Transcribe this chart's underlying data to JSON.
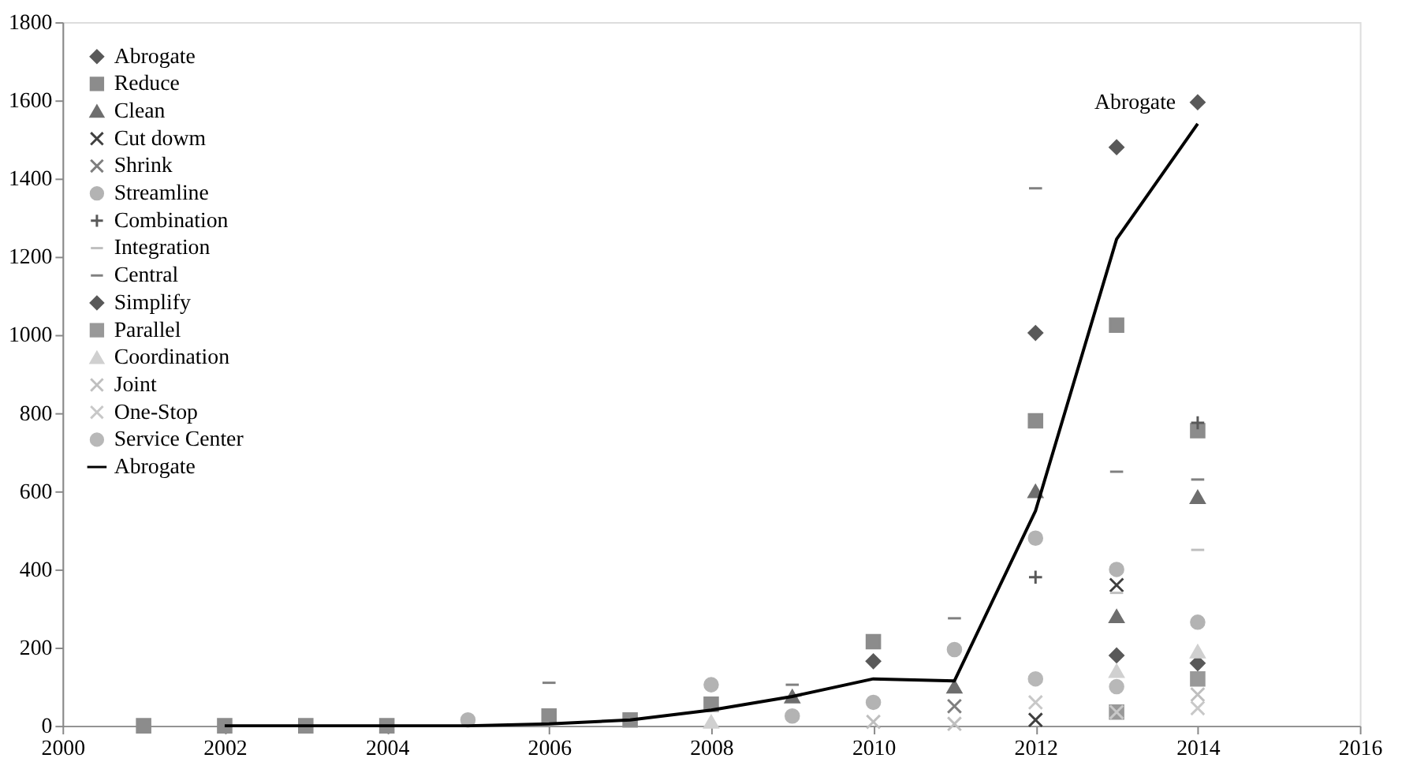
{
  "chart_data": {
    "type": "scatter",
    "x": [
      2001,
      2002,
      2003,
      2004,
      2005,
      2006,
      2007,
      2008,
      2009,
      2010,
      2011,
      2012,
      2013,
      2014
    ],
    "xlim": [
      2000,
      2016
    ],
    "xticks": [
      2000,
      2002,
      2004,
      2006,
      2008,
      2010,
      2012,
      2014,
      2016
    ],
    "ylim": [
      0,
      1800
    ],
    "yticks": [
      0,
      200,
      400,
      600,
      800,
      1000,
      1200,
      1400,
      1600,
      1800
    ],
    "grid": false,
    "legend": "top left",
    "annotations": [
      {
        "text": "Abrogate",
        "x": 2014,
        "y": 1595
      }
    ],
    "series": [
      {
        "name": "Abrogate",
        "color": "#595959",
        "marker": "diamond",
        "values": [
          null,
          null,
          null,
          null,
          null,
          null,
          null,
          null,
          null,
          165,
          null,
          1005,
          1480,
          1595
        ]
      },
      {
        "name": "Reduce",
        "color": "#8c8c8c",
        "marker": "square",
        "values": [
          0,
          0,
          0,
          0,
          null,
          25,
          15,
          55,
          null,
          215,
          null,
          780,
          1025,
          755
        ]
      },
      {
        "name": "Clean",
        "color": "#6e6e6e",
        "marker": "triangle",
        "values": [
          null,
          null,
          null,
          null,
          null,
          null,
          null,
          null,
          75,
          null,
          100,
          600,
          280,
          585
        ]
      },
      {
        "name": "Cut dowm",
        "color": "#404040",
        "marker": "x",
        "values": [
          null,
          null,
          null,
          null,
          null,
          null,
          null,
          null,
          null,
          null,
          null,
          15,
          360,
          null
        ]
      },
      {
        "name": "Shrink",
        "color": "#7f7f7f",
        "marker": "x",
        "values": [
          null,
          null,
          null,
          null,
          null,
          null,
          null,
          null,
          null,
          null,
          50,
          null,
          null,
          null
        ]
      },
      {
        "name": "Streamline",
        "color": "#b3b3b3",
        "marker": "circle",
        "values": [
          null,
          null,
          null,
          null,
          15,
          null,
          null,
          105,
          25,
          60,
          195,
          480,
          400,
          265
        ]
      },
      {
        "name": "Combination",
        "color": "#595959",
        "marker": "cross",
        "values": [
          null,
          null,
          null,
          null,
          null,
          null,
          null,
          null,
          null,
          null,
          null,
          380,
          null,
          775
        ]
      },
      {
        "name": "Integration",
        "color": "#bfbfbf",
        "values": [
          null,
          null,
          null,
          null,
          null,
          null,
          null,
          null,
          null,
          null,
          null,
          null,
          340,
          450
        ]
      },
      {
        "name": "Central",
        "color": "#808080",
        "values": [
          null,
          null,
          null,
          null,
          null,
          110,
          null,
          null,
          105,
          null,
          275,
          1375,
          650,
          630
        ]
      },
      {
        "name": "Simplify",
        "color": "#595959",
        "marker": "diamond",
        "values": [
          null,
          null,
          null,
          null,
          null,
          null,
          null,
          null,
          null,
          null,
          null,
          null,
          180,
          160
        ]
      },
      {
        "name": "Parallel",
        "color": "#999999",
        "marker": "square",
        "values": [
          null,
          null,
          null,
          null,
          null,
          null,
          null,
          null,
          null,
          null,
          null,
          null,
          35,
          120
        ]
      },
      {
        "name": "Coordination",
        "color": "#d0d0d0",
        "marker": "triangle",
        "values": [
          null,
          null,
          null,
          null,
          null,
          null,
          null,
          10,
          null,
          null,
          null,
          null,
          140,
          190
        ]
      },
      {
        "name": "Joint",
        "color": "#bfbfbf",
        "marker": "x",
        "values": [
          null,
          null,
          null,
          null,
          null,
          null,
          null,
          null,
          null,
          10,
          5,
          null,
          null,
          80
        ]
      },
      {
        "name": "One-Stop",
        "color": "#c8c8c8",
        "marker": "x",
        "values": [
          null,
          null,
          null,
          null,
          null,
          null,
          null,
          null,
          null,
          null,
          null,
          60,
          35,
          45
        ]
      },
      {
        "name": "Service Center",
        "color": "#b8b8b8",
        "marker": "circle",
        "values": [
          null,
          null,
          null,
          null,
          null,
          null,
          null,
          null,
          null,
          null,
          null,
          120,
          100,
          null
        ]
      },
      {
        "name": "Abrogate",
        "type": "line",
        "color": "#000000",
        "marker": "none",
        "line_style": "solid",
        "x": [
          2002,
          2003,
          2004,
          2005,
          2006,
          2007,
          2008,
          2009,
          2010,
          2011,
          2012,
          2013,
          2014
        ],
        "values": [
          0,
          0,
          0,
          0,
          5,
          15,
          40,
          75,
          120,
          115,
          550,
          1245,
          1540
        ]
      }
    ]
  }
}
